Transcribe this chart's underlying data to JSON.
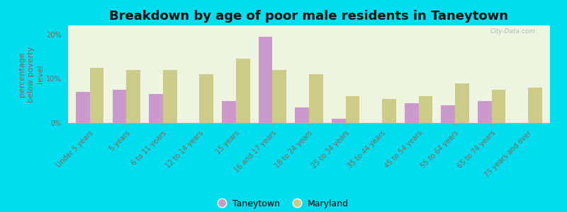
{
  "title": "Breakdown by age of poor male residents in Taneytown",
  "categories": [
    "Under 5 years",
    "5 years",
    "6 to 11 years",
    "12 to 14 years",
    "15 years",
    "16 and 17 years",
    "18 to 24 years",
    "25 to 34 years",
    "35 to 44 years",
    "45 to 54 years",
    "55 to 64 years",
    "65 to 74 years",
    "75 years and over"
  ],
  "taneytown": [
    7.0,
    7.5,
    6.5,
    0.0,
    5.0,
    19.5,
    3.5,
    1.0,
    0.0,
    4.5,
    4.0,
    5.0,
    0.0
  ],
  "maryland": [
    12.5,
    12.0,
    12.0,
    11.0,
    14.5,
    12.0,
    11.0,
    6.0,
    5.5,
    6.0,
    9.0,
    7.5,
    8.0
  ],
  "taneytown_color": "#cc99cc",
  "maryland_color": "#cccc88",
  "background_color": "#edf5e0",
  "outer_background": "#00ddee",
  "ylabel": "percentage\nbelow poverty\nlevel",
  "ylim": [
    0,
    22
  ],
  "yticks": [
    0,
    10,
    20
  ],
  "ytick_labels": [
    "0%",
    "10%",
    "20%"
  ],
  "bar_width": 0.38,
  "title_fontsize": 13,
  "axis_label_fontsize": 8,
  "tick_fontsize": 7,
  "legend_fontsize": 9,
  "tick_color": "#886655",
  "ylabel_color": "#886655",
  "title_color": "#111111"
}
